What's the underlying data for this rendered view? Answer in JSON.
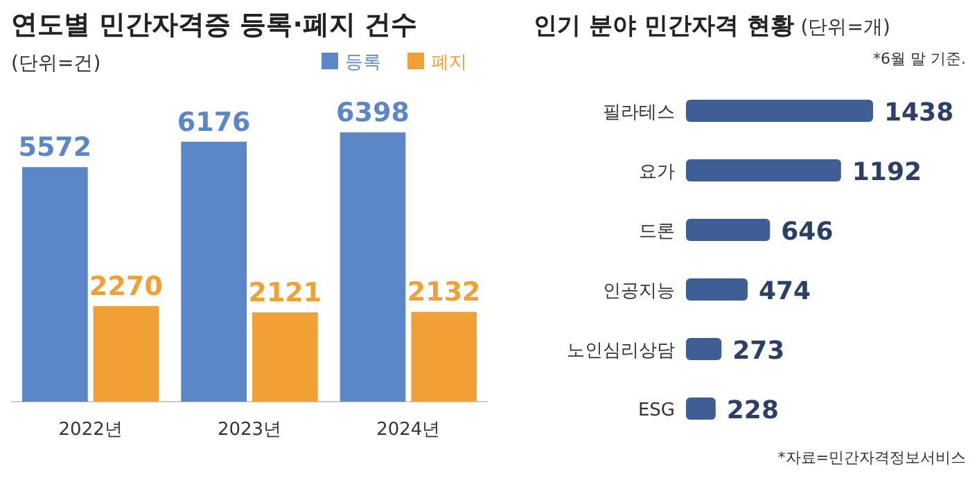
{
  "chart_data": [
    {
      "type": "bar",
      "title": "연도별 민간자격증 등록·폐지 건수",
      "subtitle": "(단위=건)",
      "categories": [
        "2022년",
        "2023년",
        "2024년"
      ],
      "series": [
        {
          "name": "등록",
          "color": "#5b87c9",
          "values": [
            5572,
            6176,
            6398
          ]
        },
        {
          "name": "폐지",
          "color": "#f0a035",
          "values": [
            2270,
            2121,
            2132
          ]
        }
      ],
      "data_labels": true,
      "legend": "top right"
    },
    {
      "type": "bar",
      "orientation": "horizontal",
      "title": "인기 분야 민간자격 현황",
      "subtitle": "(단위=개)",
      "categories": [
        "필라테스",
        "요가",
        "드론",
        "인공지능",
        "노인심리상담",
        "ESG"
      ],
      "values": [
        1438,
        1192,
        646,
        474,
        273,
        228
      ],
      "color": "#3f5f94",
      "data_labels": true,
      "annotations": [
        "*6월 말 기준.",
        "*자료=민간자격정보서비스"
      ]
    }
  ]
}
